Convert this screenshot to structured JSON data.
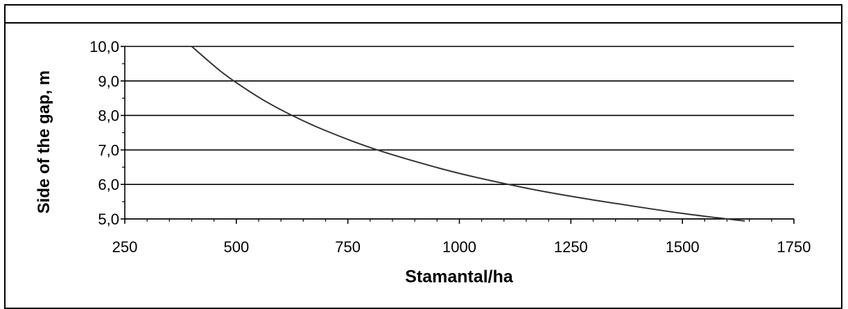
{
  "chart_data": {
    "type": "line",
    "title": "",
    "xlabel": "Stamantal/ha",
    "ylabel": "Side of the gap, m",
    "xlim": [
      250,
      1750
    ],
    "ylim": [
      5,
      10
    ],
    "x_ticks": [
      "250",
      "500",
      "750",
      "1000",
      "1250",
      "1500",
      "1750"
    ],
    "y_ticks": [
      "5,0",
      "6,0",
      "7,0",
      "8,0",
      "9,0",
      "10,0"
    ],
    "grid": true,
    "series": [
      {
        "color": "#333333",
        "x": [
          400,
          460,
          500,
          560,
          625,
          700,
          800,
          900,
          1000,
          1110,
          1200,
          1300,
          1400,
          1500,
          1600,
          1640
        ],
        "y": [
          10.0,
          9.33,
          8.95,
          8.45,
          8.0,
          7.56,
          7.07,
          6.67,
          6.32,
          6.0,
          5.77,
          5.55,
          5.35,
          5.16,
          5.0,
          4.94
        ]
      }
    ]
  }
}
